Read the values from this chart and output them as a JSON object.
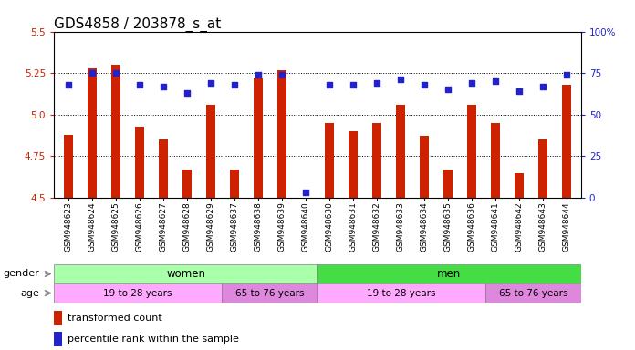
{
  "title": "GDS4858 / 203878_s_at",
  "samples": [
    "GSM948623",
    "GSM948624",
    "GSM948625",
    "GSM948626",
    "GSM948627",
    "GSM948628",
    "GSM948629",
    "GSM948637",
    "GSM948638",
    "GSM948639",
    "GSM948640",
    "GSM948630",
    "GSM948631",
    "GSM948632",
    "GSM948633",
    "GSM948634",
    "GSM948635",
    "GSM948636",
    "GSM948641",
    "GSM948642",
    "GSM948643",
    "GSM948644"
  ],
  "transformed_count": [
    4.88,
    5.28,
    5.3,
    4.93,
    4.85,
    4.67,
    5.06,
    4.67,
    5.22,
    5.27,
    4.5,
    4.95,
    4.9,
    4.95,
    5.06,
    4.87,
    4.67,
    5.06,
    4.95,
    4.65,
    4.85,
    5.18
  ],
  "percentile_rank": [
    68,
    75,
    75,
    68,
    67,
    63,
    69,
    68,
    74,
    74,
    3,
    68,
    68,
    69,
    71,
    68,
    65,
    69,
    70,
    64,
    67,
    74
  ],
  "ylim_left": [
    4.5,
    5.5
  ],
  "ylim_right": [
    0,
    100
  ],
  "yticks_left": [
    4.5,
    4.75,
    5.0,
    5.25,
    5.5
  ],
  "yticks_right": [
    0,
    25,
    50,
    75,
    100
  ],
  "ytick_labels_right": [
    "0",
    "25",
    "50",
    "75",
    "100%"
  ],
  "grid_values": [
    4.75,
    5.0,
    5.25
  ],
  "bar_color": "#cc2200",
  "dot_color": "#2222cc",
  "gender_groups": [
    {
      "label": "women",
      "start": 0,
      "end": 11,
      "color": "#aaffaa"
    },
    {
      "label": "men",
      "start": 11,
      "end": 22,
      "color": "#44dd44"
    }
  ],
  "age_groups": [
    {
      "label": "19 to 28 years",
      "start": 0,
      "end": 7,
      "color": "#ffaaff"
    },
    {
      "label": "65 to 76 years",
      "start": 7,
      "end": 11,
      "color": "#dd88dd"
    },
    {
      "label": "19 to 28 years",
      "start": 11,
      "end": 18,
      "color": "#ffaaff"
    },
    {
      "label": "65 to 76 years",
      "start": 18,
      "end": 22,
      "color": "#dd88dd"
    }
  ],
  "legend_items": [
    {
      "label": "transformed count",
      "color": "#cc2200"
    },
    {
      "label": "percentile rank within the sample",
      "color": "#2222cc"
    }
  ],
  "background_color": "#ffffff",
  "plot_bg_color": "#ffffff",
  "label_color_left": "#cc2200",
  "label_color_right": "#2222cc",
  "title_fontsize": 11,
  "tick_fontsize": 6.5,
  "annotation_fontsize": 8.5,
  "bar_width": 0.4
}
